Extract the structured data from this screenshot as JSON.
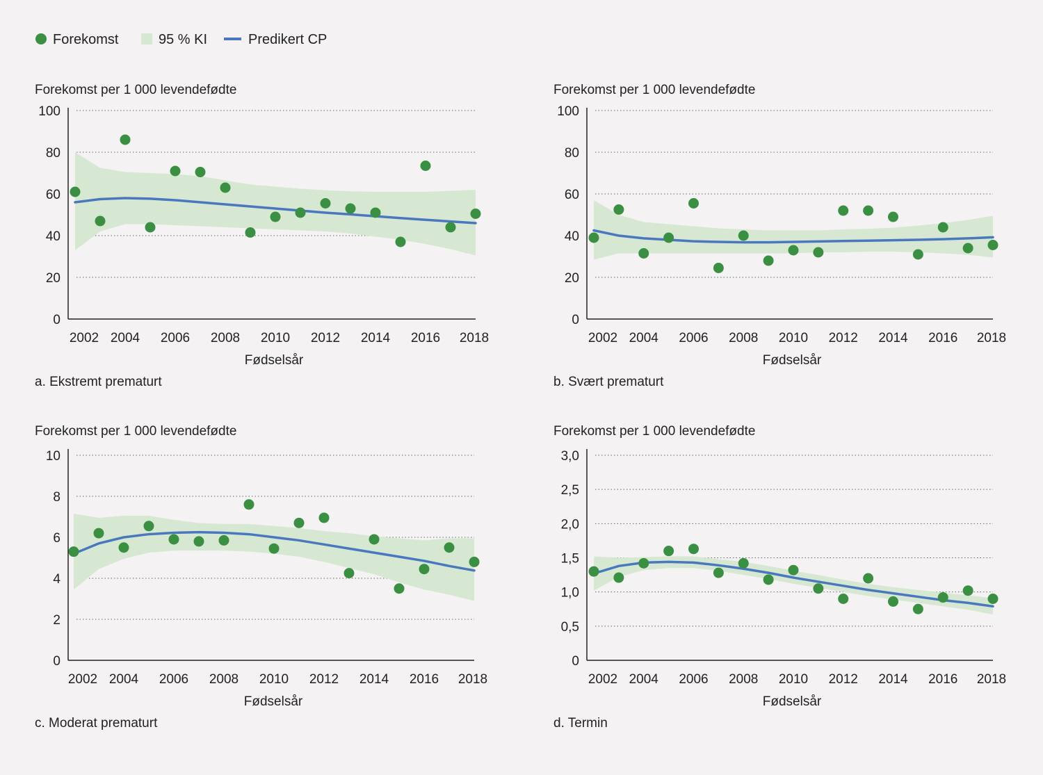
{
  "legend": {
    "points_label": "Forekomst",
    "band_label": "95 % KI",
    "line_label": "Predikert CP"
  },
  "colors": {
    "points": "#3a8f43",
    "band": "#d6e8d2",
    "line": "#4a78be",
    "axis": "#222222",
    "grid": "#666666"
  },
  "chart_data": [
    {
      "type": "scatter",
      "panel_label": "a. Ekstremt prematurt",
      "ylabel": "Forekomst per 1 000 levendefødte",
      "xlabel": "Fødselsår",
      "xlim": [
        2002,
        2018
      ],
      "ylim": [
        0,
        100
      ],
      "yticks": [
        "0",
        "20",
        "40",
        "60",
        "80",
        "100"
      ],
      "xticks": [
        "2002",
        "2004",
        "2006",
        "2008",
        "2010",
        "2012",
        "2014",
        "2016",
        "2018"
      ],
      "x": [
        2002,
        2003,
        2004,
        2005,
        2006,
        2007,
        2008,
        2009,
        2010,
        2011,
        2012,
        2013,
        2014,
        2015,
        2016,
        2017,
        2018
      ],
      "points": [
        61,
        47,
        86,
        44,
        71,
        70.5,
        63,
        41.5,
        49,
        51,
        55.5,
        53,
        51,
        37,
        73.5,
        44,
        50.5
      ],
      "line": [
        56,
        57.5,
        58,
        57.7,
        57,
        56,
        55,
        54,
        53,
        52,
        51,
        50.2,
        49.3,
        48.4,
        47.6,
        46.8,
        46
      ],
      "band_upper": [
        80,
        72.5,
        70.5,
        70,
        69.5,
        68.5,
        66.5,
        64.5,
        63.5,
        62.5,
        61.8,
        61.3,
        61,
        61,
        61,
        61.5,
        62
      ],
      "band_lower": [
        33,
        42,
        45.5,
        45.5,
        45,
        44.5,
        44,
        43.5,
        43,
        42.5,
        42,
        41,
        39.5,
        38,
        36,
        33.5,
        30.5
      ]
    },
    {
      "type": "scatter",
      "panel_label": "b. Svært prematurt",
      "ylabel": "Forekomst per 1 000 levendefødte",
      "xlabel": "Fødselsår",
      "xlim": [
        2002,
        2018
      ],
      "ylim": [
        0,
        100
      ],
      "yticks": [
        "0",
        "20",
        "40",
        "60",
        "80",
        "100"
      ],
      "xticks": [
        "2002",
        "2004",
        "2006",
        "2008",
        "2010",
        "2012",
        "2014",
        "2016",
        "2018"
      ],
      "x": [
        2002,
        2003,
        2004,
        2005,
        2006,
        2007,
        2008,
        2009,
        2010,
        2011,
        2012,
        2013,
        2014,
        2015,
        2016,
        2017,
        2018
      ],
      "points": [
        39,
        52.5,
        31.5,
        39,
        55.5,
        24.5,
        40,
        28,
        33,
        32,
        52,
        52,
        49,
        31,
        44,
        34,
        35.5
      ],
      "line": [
        42.5,
        40,
        38.7,
        38,
        37.3,
        37,
        36.8,
        36.8,
        37,
        37.2,
        37.4,
        37.6,
        37.8,
        38,
        38.3,
        38.7,
        39.2
      ],
      "band_upper": [
        57,
        50,
        46.5,
        45.5,
        44.5,
        43.5,
        43,
        42.5,
        42.5,
        42.5,
        43,
        43.3,
        43.8,
        44.8,
        46,
        47.5,
        49.5
      ],
      "band_lower": [
        28.5,
        31.5,
        31.5,
        31.5,
        31.5,
        31.5,
        31.5,
        31.5,
        31.5,
        32,
        32,
        32.3,
        32.3,
        32,
        31.5,
        30.8,
        29.5
      ]
    },
    {
      "type": "scatter",
      "panel_label": "c. Moderat prematurt",
      "ylabel": "Forekomst per 1 000 levendefødte",
      "xlabel": "Fødselsår",
      "xlim": [
        2002,
        2018
      ],
      "ylim": [
        0,
        10
      ],
      "yticks": [
        "0",
        "2",
        "4",
        "6",
        "8",
        "10"
      ],
      "xticks": [
        "2002",
        "2004",
        "2006",
        "2008",
        "2010",
        "2012",
        "2014",
        "2016",
        "2018"
      ],
      "x": [
        2002,
        2003,
        2004,
        2005,
        2006,
        2007,
        2008,
        2009,
        2010,
        2011,
        2012,
        2013,
        2014,
        2015,
        2016,
        2017,
        2018
      ],
      "points": [
        5.3,
        6.2,
        5.5,
        6.55,
        5.9,
        5.8,
        5.85,
        7.6,
        5.45,
        6.7,
        6.95,
        4.25,
        5.9,
        3.5,
        4.45,
        5.5,
        4.8
      ],
      "line": [
        5.2,
        5.7,
        6.0,
        6.15,
        6.22,
        6.25,
        6.22,
        6.15,
        6.0,
        5.85,
        5.65,
        5.45,
        5.25,
        5.05,
        4.85,
        4.6,
        4.38
      ],
      "band_upper": [
        7.15,
        6.95,
        7.05,
        7.05,
        6.85,
        6.7,
        6.65,
        6.65,
        6.55,
        6.45,
        6.3,
        6.2,
        6.05,
        5.95,
        5.85,
        5.95,
        5.95
      ],
      "band_lower": [
        3.45,
        4.45,
        4.95,
        5.25,
        5.35,
        5.35,
        5.35,
        5.3,
        5.2,
        5.05,
        4.8,
        4.5,
        4.2,
        3.8,
        3.45,
        3.2,
        2.9
      ]
    },
    {
      "type": "scatter",
      "panel_label": "d. Termin",
      "ylabel": "Forekomst per 1 000 levendefødte",
      "xlabel": "Fødselsår",
      "xlim": [
        2002,
        2018
      ],
      "ylim": [
        0,
        3.0
      ],
      "yticks": [
        "0",
        "0,5",
        "1,0",
        "1,5",
        "2,0",
        "2,5",
        "3,0"
      ],
      "xticks": [
        "2002",
        "2004",
        "2006",
        "2008",
        "2010",
        "2012",
        "2014",
        "2016",
        "2018"
      ],
      "x": [
        2002,
        2003,
        2004,
        2005,
        2006,
        2007,
        2008,
        2009,
        2010,
        2011,
        2012,
        2013,
        2014,
        2015,
        2016,
        2017,
        2018
      ],
      "points": [
        1.3,
        1.21,
        1.42,
        1.6,
        1.63,
        1.28,
        1.42,
        1.18,
        1.32,
        1.05,
        0.9,
        1.2,
        0.86,
        0.75,
        0.92,
        1.02,
        0.9
      ],
      "line": [
        1.27,
        1.38,
        1.43,
        1.44,
        1.43,
        1.39,
        1.34,
        1.28,
        1.21,
        1.15,
        1.09,
        1.03,
        0.98,
        0.93,
        0.88,
        0.84,
        0.79
      ],
      "band_upper": [
        1.52,
        1.5,
        1.51,
        1.52,
        1.52,
        1.48,
        1.44,
        1.38,
        1.31,
        1.25,
        1.18,
        1.12,
        1.07,
        1.03,
        0.99,
        0.95,
        0.91
      ],
      "band_lower": [
        1.02,
        1.22,
        1.32,
        1.35,
        1.35,
        1.31,
        1.25,
        1.19,
        1.12,
        1.06,
        1.0,
        0.94,
        0.89,
        0.84,
        0.79,
        0.74,
        0.67
      ]
    }
  ]
}
